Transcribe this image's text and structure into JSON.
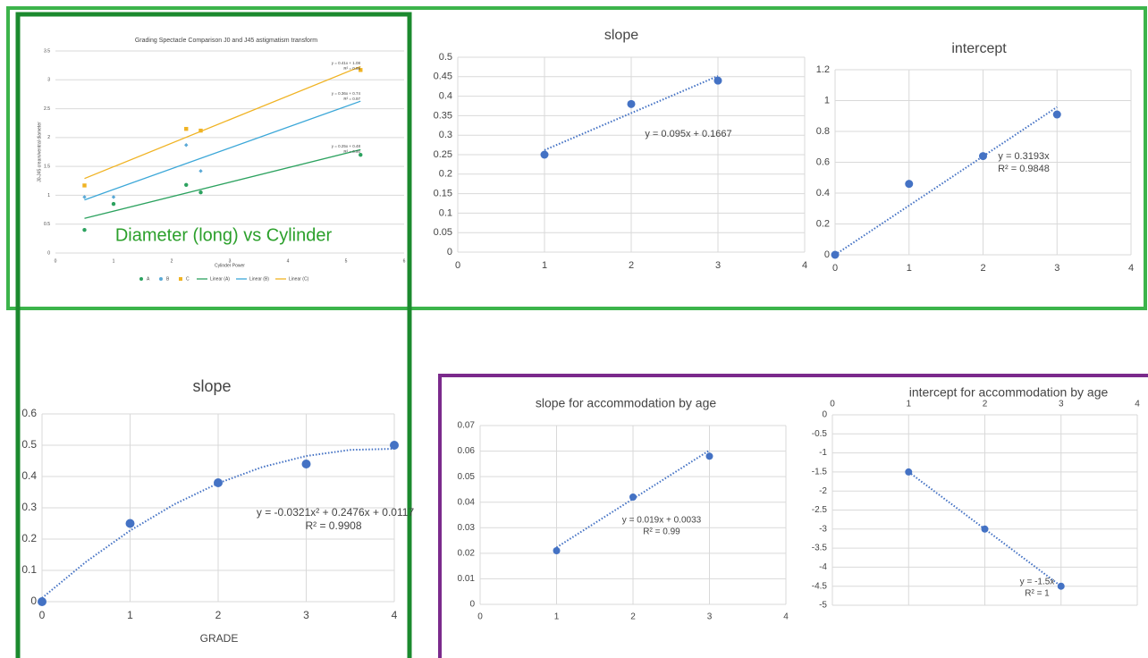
{
  "chart_data": [
    {
      "type": "scatter",
      "title": "Grading Spectacle Comparison J0 and J45 astigmatism transform",
      "x_label": "Cylinder Power",
      "y_label": "J0-J45 cream/ventral diameter",
      "xlim": [
        0,
        6
      ],
      "xticks": [
        0,
        1,
        2,
        3,
        4,
        5,
        6
      ],
      "ylim": [
        0,
        3.5
      ],
      "yticks": [
        0,
        0.5,
        1,
        1.5,
        2,
        2.5,
        3,
        3.5
      ],
      "grid": true,
      "legend": "bottom",
      "series": [
        {
          "name": "A",
          "color": "#2ca25f",
          "marker": "circle",
          "x": [
            0.5,
            1,
            2.25,
            2.5,
            5.25
          ],
          "values": [
            0.4,
            0.85,
            1.18,
            1.05,
            1.7
          ]
        },
        {
          "name": "B",
          "color": "#5aa9d6",
          "marker": "diamond",
          "x": [
            0.5,
            1,
            2.25,
            2.5
          ],
          "values": [
            0.97,
            0.97,
            1.87,
            1.42
          ]
        },
        {
          "name": "C",
          "color": "#f0b323",
          "marker": "square",
          "x": [
            0.5,
            2.25,
            2.5,
            5.25
          ],
          "values": [
            1.17,
            2.15,
            2.12,
            3.17
          ]
        },
        {
          "name": "Linear (A)",
          "color": "#2ca25f",
          "style": "solid",
          "x": [
            0.5,
            5.25
          ],
          "values": [
            0.6,
            1.79
          ]
        },
        {
          "name": "Linear (B)",
          "color": "#3ba7d8",
          "style": "solid",
          "x": [
            0.5,
            5.25
          ],
          "values": [
            0.92,
            2.63
          ]
        },
        {
          "name": "Linear (C)",
          "color": "#f0b323",
          "style": "solid",
          "x": [
            0.5,
            5.25
          ],
          "values": [
            1.29,
            3.23
          ]
        }
      ],
      "annotations": [
        "y = 0.41x + 1.08",
        "R² = 0.98",
        "y = 0.36x + 0.74",
        "R² = 0.97",
        "y = 0.25x + 0.48",
        "R² = 0.90",
        "Diameter (long) vs Cylinder"
      ]
    },
    {
      "type": "scatter",
      "title": "slope",
      "xlim": [
        0,
        4
      ],
      "xticks": [
        0,
        1,
        2,
        3,
        4
      ],
      "ylim": [
        0,
        0.5
      ],
      "yticks": [
        0,
        0.05,
        0.1,
        0.15,
        0.2,
        0.25,
        0.3,
        0.35,
        0.4,
        0.45,
        0.5
      ],
      "grid": true,
      "series": [
        {
          "color": "#4472c4",
          "marker": "circle",
          "x": [
            1,
            2,
            3
          ],
          "values": [
            0.25,
            0.38,
            0.44
          ]
        },
        {
          "color": "#4472c4",
          "style": "dotted",
          "x": [
            1,
            3
          ],
          "values": [
            0.2617,
            0.4517
          ]
        }
      ],
      "annotations": [
        "y = 0.095x + 0.1667"
      ]
    },
    {
      "type": "scatter",
      "title": "intercept",
      "xlim": [
        0,
        4
      ],
      "xticks": [
        0,
        1,
        2,
        3,
        4
      ],
      "ylim": [
        0,
        1.2
      ],
      "yticks": [
        0,
        0.2,
        0.4,
        0.6,
        0.8,
        1,
        1.2
      ],
      "grid": true,
      "series": [
        {
          "color": "#4472c4",
          "marker": "circle",
          "x": [
            0,
            1,
            2,
            3
          ],
          "values": [
            0,
            0.46,
            0.64,
            0.91
          ]
        },
        {
          "color": "#4472c4",
          "style": "dotted",
          "x": [
            0,
            3
          ],
          "values": [
            0,
            0.9579
          ]
        }
      ],
      "annotations": [
        "y = 0.3193x",
        "R² = 0.9848"
      ]
    },
    {
      "type": "scatter",
      "title": "slope",
      "x_label": "GRADE",
      "xlim": [
        0,
        4
      ],
      "xticks": [
        0,
        1,
        2,
        3,
        4
      ],
      "ylim": [
        0,
        0.6
      ],
      "yticks": [
        0,
        0.1,
        0.2,
        0.3,
        0.4,
        0.5,
        0.6
      ],
      "grid": true,
      "series": [
        {
          "color": "#4472c4",
          "marker": "circle",
          "x": [
            0,
            1,
            2,
            3,
            4
          ],
          "values": [
            0,
            0.25,
            0.38,
            0.44,
            0.5
          ]
        },
        {
          "color": "#4472c4",
          "style": "dotted",
          "x": [
            0,
            0.5,
            1,
            1.5,
            2,
            2.5,
            3,
            3.5,
            4
          ],
          "values": [
            0.0117,
            0.1275,
            0.2272,
            0.3109,
            0.3785,
            0.4301,
            0.4656,
            0.4851,
            0.4885
          ]
        }
      ],
      "annotations": [
        "y = -0.0321x² + 0.2476x + 0.0117",
        "R² = 0.9908"
      ]
    },
    {
      "type": "scatter",
      "title": "slope for accommodation by age",
      "xlim": [
        0,
        4
      ],
      "xticks": [
        0,
        1,
        2,
        3,
        4
      ],
      "ylim": [
        0,
        0.07
      ],
      "yticks": [
        0,
        0.01,
        0.02,
        0.03,
        0.04,
        0.05,
        0.06,
        0.07
      ],
      "grid": true,
      "series": [
        {
          "color": "#4472c4",
          "marker": "circle",
          "x": [
            1,
            2,
            3
          ],
          "values": [
            0.021,
            0.042,
            0.058
          ]
        },
        {
          "color": "#4472c4",
          "style": "dotted",
          "x": [
            1,
            3
          ],
          "values": [
            0.0223,
            0.0603
          ]
        }
      ],
      "annotations": [
        "y = 0.019x + 0.0033",
        "R² = 0.99"
      ]
    },
    {
      "type": "scatter",
      "title": "intercept for accommodation by age",
      "xlim": [
        0,
        4
      ],
      "xticks": [
        0,
        1,
        2,
        3,
        4
      ],
      "ylim": [
        -5,
        0
      ],
      "yticks": [
        0,
        -0.5,
        -1,
        -1.5,
        -2,
        -2.5,
        -3,
        -3.5,
        -4,
        -4.5,
        -5
      ],
      "grid": true,
      "series": [
        {
          "color": "#4472c4",
          "marker": "circle",
          "x": [
            1,
            2,
            3
          ],
          "values": [
            -1.5,
            -3,
            -4.5
          ]
        },
        {
          "color": "#4472c4",
          "style": "dotted",
          "x": [
            1,
            3
          ],
          "values": [
            -1.5,
            -4.5
          ]
        }
      ],
      "annotations": [
        "y = -1.5x",
        "R² = 1"
      ]
    }
  ]
}
